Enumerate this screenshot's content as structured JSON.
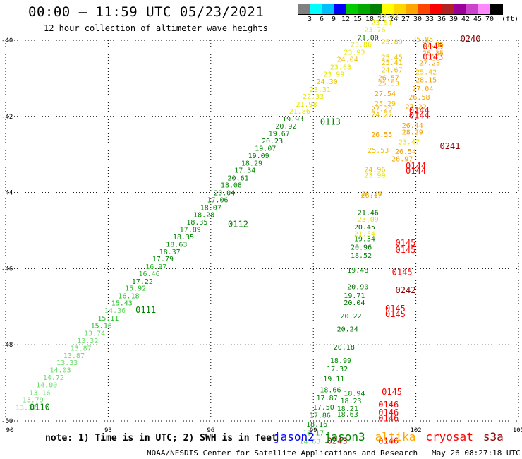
{
  "header": {
    "title": "00:00 – 11:59 UTC 05/23/2021",
    "subtitle": "12 hour collection of altimeter wave heights"
  },
  "colorbar": {
    "unit_label": "(ft)",
    "ticks": [
      "3",
      "6",
      "9",
      "12",
      "15",
      "18",
      "21",
      "24",
      "27",
      "30",
      "33",
      "36",
      "39",
      "42",
      "45",
      "70"
    ],
    "colors": [
      "#808080",
      "#00ffff",
      "#00bfff",
      "#0000ff",
      "#00cc00",
      "#00aa00",
      "#007f00",
      "#ffff00",
      "#ffd700",
      "#ffa500",
      "#ff4500",
      "#ff0000",
      "#b22222",
      "#9b009b",
      "#cc44cc",
      "#ff88ff",
      "#000000"
    ]
  },
  "footer": {
    "note": "note: 1) Time is in UTC; 2) SWH is in feet",
    "credit": "NOAA/NESDIS Center for Satellite Applications and Research   May 26 08:27:18 UTC 2021",
    "missions": [
      {
        "name": "jason2",
        "color": "#0000ff"
      },
      {
        "name": "jason3",
        "color": "#008000"
      },
      {
        "name": "altika",
        "color": "#ffa500"
      },
      {
        "name": "cryosat",
        "color": "#ff0000"
      },
      {
        "name": "s3a",
        "color": "#8b0000"
      }
    ]
  },
  "chart_data": {
    "type": "scatter",
    "title": "00:00 – 11:59 UTC 05/23/2021",
    "subtitle": "12 hour collection of altimeter wave heights",
    "xlim": [
      90,
      105
    ],
    "ylim": [
      -50,
      -40
    ],
    "xticks": [
      "90",
      "93",
      "96",
      "99",
      "102",
      "105"
    ],
    "yticks": [
      "-40",
      "-42",
      "-44",
      "-46",
      "-48",
      "-50"
    ],
    "grid": true,
    "series": [
      {
        "name": "jason3",
        "color_by_swh": true,
        "points": [
          {
            "x": 90.6,
            "y": -49.71,
            "swh": "13.32"
          },
          {
            "x": 90.8,
            "y": -49.51,
            "swh": "13.79"
          },
          {
            "x": 91.0,
            "y": -49.32,
            "swh": "13.16"
          },
          {
            "x": 91.2,
            "y": -49.12,
            "swh": "14.00"
          },
          {
            "x": 91.4,
            "y": -48.92,
            "swh": "14.72"
          },
          {
            "x": 91.6,
            "y": -48.73,
            "swh": "14.03"
          },
          {
            "x": 91.8,
            "y": -48.53,
            "swh": "13.33"
          },
          {
            "x": 92.0,
            "y": -48.35,
            "swh": "13.87"
          },
          {
            "x": 92.2,
            "y": -48.15,
            "swh": "13.87"
          },
          {
            "x": 92.4,
            "y": -47.96,
            "swh": "13.32"
          },
          {
            "x": 92.6,
            "y": -47.76,
            "swh": "13.74"
          },
          {
            "x": 92.8,
            "y": -47.56,
            "swh": "15.16"
          },
          {
            "x": 93.0,
            "y": -47.37,
            "swh": "15.11"
          },
          {
            "x": 93.2,
            "y": -47.16,
            "swh": "14.36"
          },
          {
            "x": 93.4,
            "y": -46.97,
            "swh": "15.43"
          },
          {
            "x": 93.6,
            "y": -46.78,
            "swh": "16.18"
          },
          {
            "x": 93.8,
            "y": -46.58,
            "swh": "15.92"
          },
          {
            "x": 94.0,
            "y": -46.4,
            "swh": "17.22"
          },
          {
            "x": 94.2,
            "y": -46.2,
            "swh": "16.46"
          },
          {
            "x": 94.4,
            "y": -46.01,
            "swh": "16.97"
          },
          {
            "x": 94.6,
            "y": -45.81,
            "swh": "17.79"
          },
          {
            "x": 94.8,
            "y": -45.62,
            "swh": "18.37"
          },
          {
            "x": 95.0,
            "y": -45.43,
            "swh": "18.63"
          },
          {
            "x": 95.2,
            "y": -45.23,
            "swh": "18.35"
          },
          {
            "x": 95.4,
            "y": -45.04,
            "swh": "17.89"
          },
          {
            "x": 95.6,
            "y": -44.84,
            "swh": "18.35"
          },
          {
            "x": 95.8,
            "y": -44.65,
            "swh": "18.28"
          },
          {
            "x": 96.0,
            "y": -44.46,
            "swh": "18.07"
          },
          {
            "x": 96.2,
            "y": -44.26,
            "swh": "17.06"
          },
          {
            "x": 96.4,
            "y": -44.07,
            "swh": "20.04"
          },
          {
            "x": 96.6,
            "y": -43.87,
            "swh": "18.08"
          },
          {
            "x": 96.8,
            "y": -43.68,
            "swh": "20.61"
          },
          {
            "x": 97.0,
            "y": -43.48,
            "swh": "17.34"
          },
          {
            "x": 97.2,
            "y": -43.29,
            "swh": "18.29"
          },
          {
            "x": 97.4,
            "y": -43.1,
            "swh": "19.09"
          },
          {
            "x": 97.6,
            "y": -42.9,
            "swh": "19.07"
          },
          {
            "x": 97.8,
            "y": -42.71,
            "swh": "20.23"
          },
          {
            "x": 98.0,
            "y": -42.51,
            "swh": "19.67"
          },
          {
            "x": 98.2,
            "y": -42.32,
            "swh": "20.92"
          },
          {
            "x": 98.4,
            "y": -42.13,
            "swh": "19.93"
          },
          {
            "x": 98.6,
            "y": -41.93,
            "swh": "21.86"
          },
          {
            "x": 98.8,
            "y": -41.74,
            "swh": "21.98"
          },
          {
            "x": 99.0,
            "y": -41.54,
            "swh": "22.33"
          },
          {
            "x": 99.2,
            "y": -41.35,
            "swh": "23.31"
          },
          {
            "x": 99.4,
            "y": -41.15,
            "swh": "24.30"
          },
          {
            "x": 99.6,
            "y": -40.96,
            "swh": "23.99"
          },
          {
            "x": 99.8,
            "y": -40.77,
            "swh": "23.63"
          },
          {
            "x": 100.0,
            "y": -40.57,
            "swh": "24.04"
          },
          {
            "x": 100.2,
            "y": -40.38,
            "swh": "23.93"
          },
          {
            "x": 100.4,
            "y": -40.18,
            "swh": "23.86"
          },
          {
            "x": 100.6,
            "y": -39.99,
            "swh": "21.00"
          },
          {
            "x": 100.8,
            "y": -39.79,
            "swh": "23.76"
          },
          {
            "x": 101.0,
            "y": -39.6,
            "swh": "23.51"
          },
          {
            "x": 101.2,
            "y": -39.41,
            "swh": "23.41"
          }
        ]
      },
      {
        "name": "altika",
        "color_by_swh": true,
        "points": [
          {
            "x": 101.3,
            "y": -40.1,
            "swh": "25.89"
          },
          {
            "x": 101.3,
            "y": -40.51,
            "swh": "25.45"
          },
          {
            "x": 101.3,
            "y": -40.65,
            "swh": "25.41"
          },
          {
            "x": 101.3,
            "y": -40.84,
            "swh": "24.67"
          },
          {
            "x": 101.2,
            "y": -41.05,
            "swh": "26.57"
          },
          {
            "x": 101.2,
            "y": -41.2,
            "swh": "25.53"
          },
          {
            "x": 101.1,
            "y": -41.47,
            "swh": "27.54"
          },
          {
            "x": 101.1,
            "y": -41.73,
            "swh": "25.29"
          },
          {
            "x": 101.0,
            "y": -41.86,
            "swh": "27.29"
          },
          {
            "x": 101.0,
            "y": -42.01,
            "swh": "24.27"
          },
          {
            "x": 101.0,
            "y": -42.54,
            "swh": "26.55"
          },
          {
            "x": 100.9,
            "y": -42.95,
            "swh": "25.53"
          },
          {
            "x": 100.8,
            "y": -43.46,
            "swh": "24.96"
          },
          {
            "x": 100.8,
            "y": -43.61,
            "swh": "23.99"
          },
          {
            "x": 100.7,
            "y": -44.08,
            "swh": "24.28"
          },
          {
            "x": 100.7,
            "y": -44.14,
            "swh": "26.17"
          },
          {
            "x": 102.2,
            "y": -40.04,
            "swh": "25.85"
          },
          {
            "x": 102.5,
            "y": -40.18,
            "swh": "27.86"
          },
          {
            "x": 102.5,
            "y": -40.4,
            "swh": "26.35"
          },
          {
            "x": 102.4,
            "y": -40.66,
            "swh": "27.28"
          },
          {
            "x": 102.3,
            "y": -40.9,
            "swh": "25.42"
          },
          {
            "x": 102.3,
            "y": -41.1,
            "swh": "28.15"
          },
          {
            "x": 102.2,
            "y": -41.34,
            "swh": "27.04"
          },
          {
            "x": 102.1,
            "y": -41.56,
            "swh": "26.58"
          },
          {
            "x": 102.0,
            "y": -41.81,
            "swh": "27.22"
          },
          {
            "x": 101.9,
            "y": -42.3,
            "swh": "26.44"
          },
          {
            "x": 101.9,
            "y": -42.48,
            "swh": "28.29"
          },
          {
            "x": 101.8,
            "y": -42.74,
            "swh": "23.47"
          },
          {
            "x": 101.7,
            "y": -42.99,
            "swh": "26.54"
          },
          {
            "x": 101.6,
            "y": -43.18,
            "swh": "26.97"
          }
        ]
      },
      {
        "name": "cryosat",
        "color_by_swh": true,
        "points": [
          {
            "x": 100.6,
            "y": -44.59,
            "swh": "21.46"
          },
          {
            "x": 100.6,
            "y": -44.77,
            "swh": "23.09"
          },
          {
            "x": 100.5,
            "y": -44.97,
            "swh": "20.45"
          },
          {
            "x": 100.5,
            "y": -45.15,
            "swh": "21.54"
          },
          {
            "x": 100.5,
            "y": -45.28,
            "swh": "19.34"
          },
          {
            "x": 100.4,
            "y": -45.5,
            "swh": "20.96"
          },
          {
            "x": 100.4,
            "y": -45.71,
            "swh": "18.52"
          },
          {
            "x": 100.3,
            "y": -46.1,
            "swh": "19.48"
          },
          {
            "x": 100.3,
            "y": -46.54,
            "swh": "20.90"
          },
          {
            "x": 100.2,
            "y": -46.77,
            "swh": "19.71"
          },
          {
            "x": 100.2,
            "y": -46.96,
            "swh": "20.04"
          },
          {
            "x": 100.1,
            "y": -47.31,
            "swh": "20.22"
          },
          {
            "x": 100.0,
            "y": -47.65,
            "swh": "20.24"
          },
          {
            "x": 99.9,
            "y": -48.13,
            "swh": "20.18"
          },
          {
            "x": 99.8,
            "y": -48.48,
            "swh": "18.99"
          },
          {
            "x": 99.7,
            "y": -48.7,
            "swh": "17.32"
          },
          {
            "x": 99.6,
            "y": -48.96,
            "swh": "19.11"
          },
          {
            "x": 99.5,
            "y": -49.25,
            "swh": "18.66"
          },
          {
            "x": 99.4,
            "y": -49.46,
            "swh": "17.87"
          },
          {
            "x": 99.3,
            "y": -49.7,
            "swh": "17.50"
          },
          {
            "x": 99.2,
            "y": -49.92,
            "swh": "17.86"
          },
          {
            "x": 99.1,
            "y": -50.15,
            "swh": "18.16"
          },
          {
            "x": 99.0,
            "y": -50.38,
            "swh": "16.17"
          },
          {
            "x": 98.9,
            "y": -50.6,
            "swh": "14.63"
          },
          {
            "x": 100.2,
            "y": -49.34,
            "swh": "18.94"
          },
          {
            "x": 100.1,
            "y": -49.54,
            "swh": "18.23"
          },
          {
            "x": 100.0,
            "y": -49.74,
            "swh": "18.21"
          },
          {
            "x": 100.0,
            "y": -49.89,
            "swh": "18.63"
          }
        ]
      }
    ],
    "time_labels": [
      {
        "text": "0110",
        "x": 90.7,
        "y": -49.71,
        "color": "#008000"
      },
      {
        "text": "0111",
        "x": 93.8,
        "y": -47.16,
        "color": "#008000"
      },
      {
        "text": "0112",
        "x": 96.5,
        "y": -44.91,
        "color": "#008000"
      },
      {
        "text": "0113",
        "x": 99.2,
        "y": -42.22,
        "color": "#008000"
      },
      {
        "text": "0143",
        "x": 102.2,
        "y": -40.24,
        "color": "#ff0000"
      },
      {
        "text": "0143",
        "x": 102.2,
        "y": -40.51,
        "color": "#ff0000"
      },
      {
        "text": "0144",
        "x": 101.8,
        "y": -41.92,
        "color": "#ff0000"
      },
      {
        "text": "0144",
        "x": 101.8,
        "y": -42.05,
        "color": "#ff0000"
      },
      {
        "text": "0144",
        "x": 101.7,
        "y": -43.38,
        "color": "#ff0000"
      },
      {
        "text": "0144",
        "x": 101.7,
        "y": -43.51,
        "color": "#ff0000"
      },
      {
        "text": "0145",
        "x": 101.4,
        "y": -45.4,
        "color": "#ff0000"
      },
      {
        "text": "0145",
        "x": 101.4,
        "y": -45.58,
        "color": "#ff0000"
      },
      {
        "text": "0145",
        "x": 101.3,
        "y": -46.17,
        "color": "#ff0000"
      },
      {
        "text": "0145",
        "x": 101.1,
        "y": -47.27,
        "color": "#ff0000"
      },
      {
        "text": "0145",
        "x": 101.1,
        "y": -47.12,
        "color": "#ff0000"
      },
      {
        "text": "0145",
        "x": 101.0,
        "y": -49.31,
        "color": "#ff0000"
      },
      {
        "text": "0146",
        "x": 100.9,
        "y": -49.65,
        "color": "#ff0000"
      },
      {
        "text": "0146",
        "x": 100.9,
        "y": -49.85,
        "color": "#ff0000"
      },
      {
        "text": "0146",
        "x": 100.9,
        "y": -50.01,
        "color": "#ff0000"
      },
      {
        "text": "0146",
        "x": 100.9,
        "y": -50.6,
        "color": "#ff0000"
      },
      {
        "text": "0240",
        "x": 103.3,
        "y": -40.04,
        "color": "#8b0000"
      },
      {
        "text": "0241",
        "x": 102.7,
        "y": -42.86,
        "color": "#8b0000"
      },
      {
        "text": "0242",
        "x": 101.4,
        "y": -46.64,
        "color": "#8b0000"
      },
      {
        "text": "0243",
        "x": 99.4,
        "y": -50.6,
        "color": "#8b0000"
      }
    ]
  }
}
